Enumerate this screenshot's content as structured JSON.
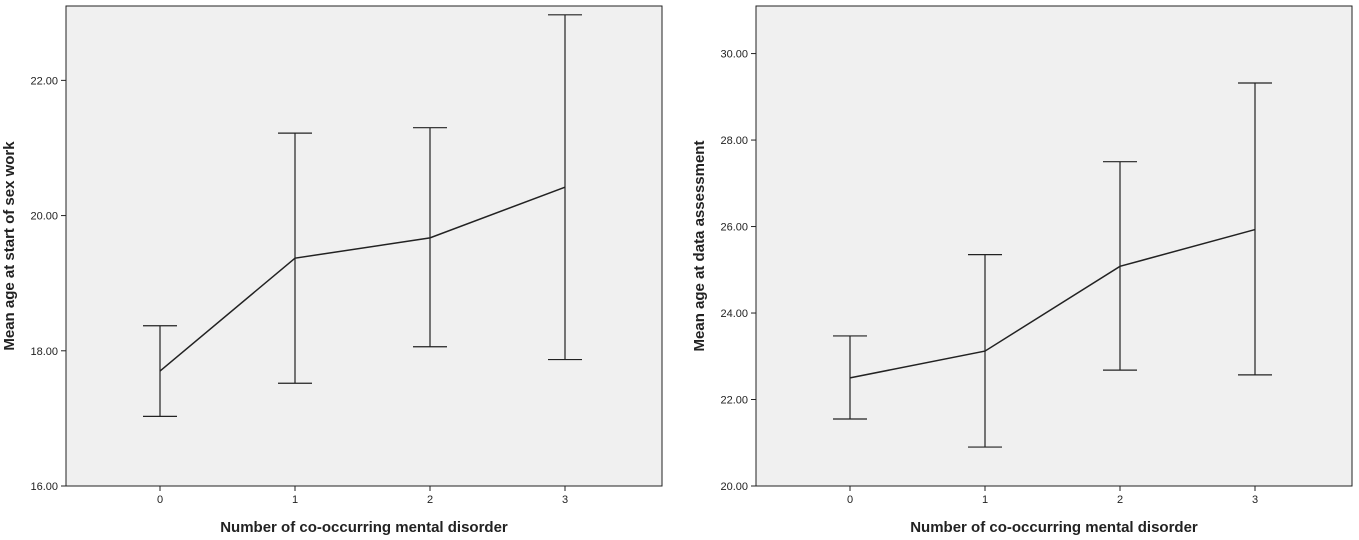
{
  "chart_data": [
    {
      "type": "line",
      "xlabel": "Number of co-occurring mental disorder",
      "ylabel": "Mean age at start of sex work",
      "categories": [
        "0",
        "1",
        "2",
        "3"
      ],
      "values": [
        17.7,
        19.37,
        19.67,
        20.42
      ],
      "error_low": [
        17.03,
        17.52,
        18.06,
        17.87
      ],
      "error_high": [
        18.37,
        21.22,
        21.3,
        22.97
      ],
      "ylim": [
        16.0,
        23.1
      ],
      "yticks": [
        "16.00",
        "18.00",
        "20.00",
        "22.00"
      ],
      "grid": false
    },
    {
      "type": "line",
      "xlabel": "Number of co-occurring mental disorder",
      "ylabel": "Mean age at data assessment",
      "categories": [
        "0",
        "1",
        "2",
        "3"
      ],
      "values": [
        22.5,
        23.12,
        25.08,
        25.93
      ],
      "error_low": [
        21.55,
        20.9,
        22.68,
        22.57
      ],
      "error_high": [
        23.47,
        25.35,
        27.5,
        29.32
      ],
      "ylim": [
        20.0,
        31.1
      ],
      "yticks": [
        "20.00",
        "22.00",
        "24.00",
        "26.00",
        "28.00",
        "30.00"
      ],
      "grid": false
    }
  ]
}
